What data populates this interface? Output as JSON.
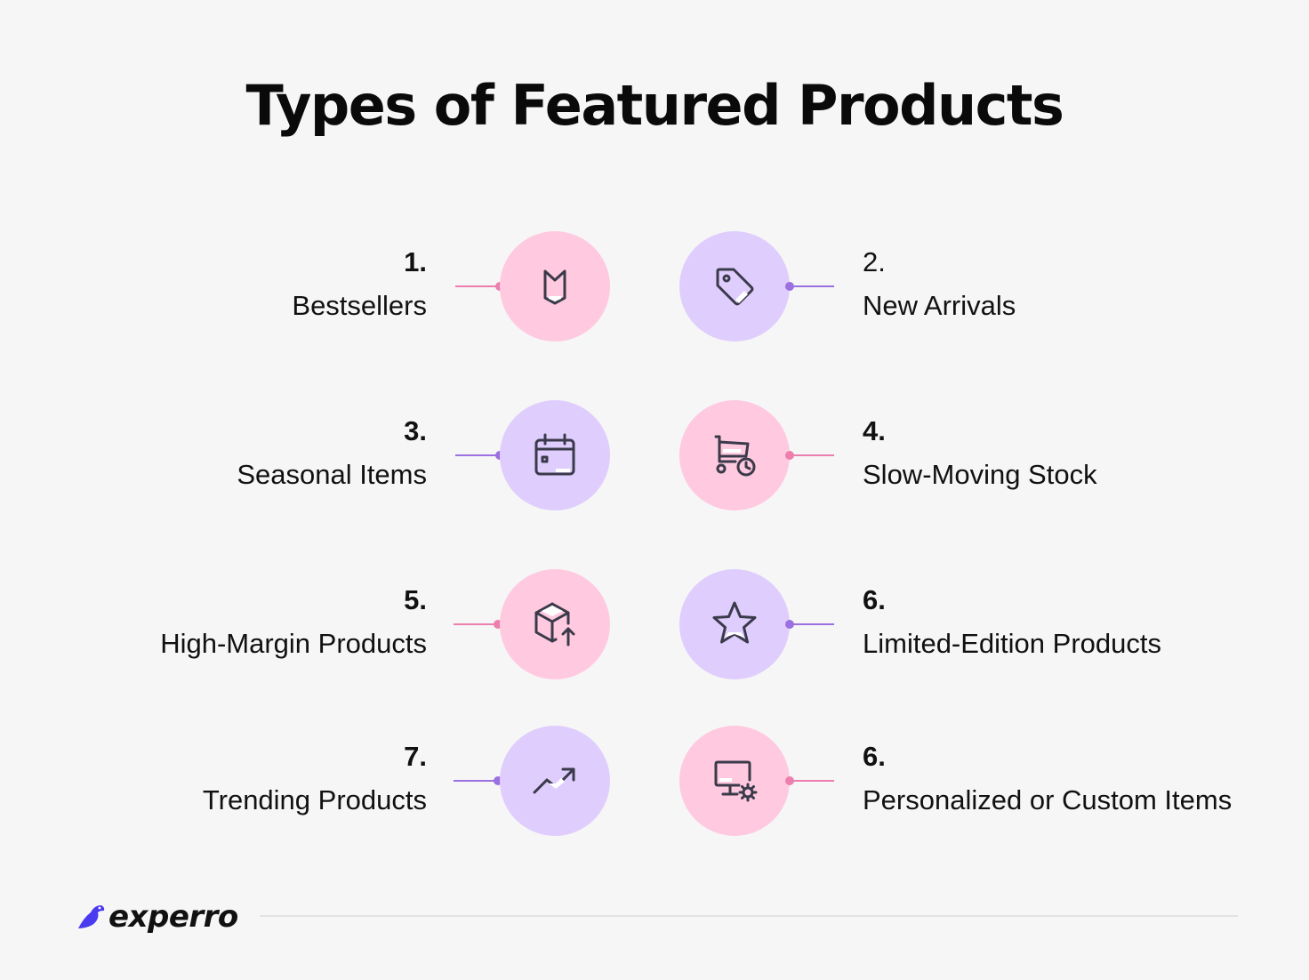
{
  "title": {
    "strong": "Types",
    "rest": " of Featured Products"
  },
  "items": [
    {
      "number": "1.",
      "label": "Bestsellers",
      "icon": "bookmark-icon"
    },
    {
      "number": "2.",
      "label": "New Arrivals",
      "icon": "tag-icon"
    },
    {
      "number": "3.",
      "label": "Seasonal Items",
      "icon": "calendar-icon"
    },
    {
      "number": "4.",
      "label": "Slow-Moving Stock",
      "icon": "cart-clock-icon"
    },
    {
      "number": "5.",
      "label": "High-Margin Products",
      "icon": "box-arrow-up-icon"
    },
    {
      "number": "6.",
      "label": "Limited-Edition Products",
      "icon": "star-icon"
    },
    {
      "number": "7.",
      "label": "Trending Products",
      "icon": "trending-up-icon"
    },
    {
      "number": "6.",
      "label": "Personalized or Custom Items",
      "icon": "monitor-gear-icon"
    }
  ],
  "colors": {
    "pink_circle": "#ffc9df",
    "purple_circle": "#dfcdfd",
    "pink_line": "#ec7fae",
    "purple_line": "#9b70e0",
    "icon_stroke": "#3a3a4a"
  },
  "logo": {
    "text": "experro"
  }
}
